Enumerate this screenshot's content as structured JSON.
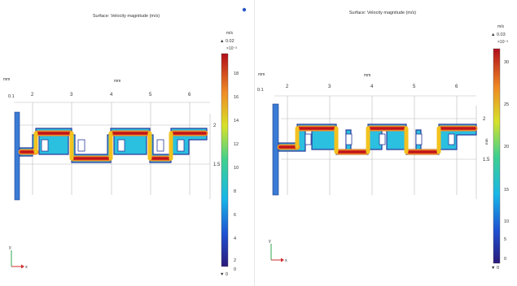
{
  "left": {
    "title": "Surface: Velocity magnitude (m/s)",
    "unit_top": "m/s",
    "max_value": "▲ 0.02",
    "scale_factor": "×10⁻³",
    "min_value": "▼ 0",
    "colorbar_ticks": [
      "18",
      "16",
      "14",
      "12",
      "10",
      "8",
      "6",
      "4",
      "2",
      "0"
    ],
    "axis_unit_x": "mm",
    "axis_unit_y_left": "mm",
    "x_ticks": [
      "2",
      "3",
      "4",
      "5",
      "6"
    ],
    "y_tick_top": "0.1",
    "right_ticks": [
      "2",
      "1.5"
    ],
    "right_unit": "mm",
    "triad_y": "y",
    "triad_x": "x"
  },
  "right": {
    "title": "Surface: Velocity magnitude (m/s)",
    "unit_top": "m/s",
    "max_value": "▲ 0.03",
    "scale_factor": "×10⁻³",
    "min_value": "▼ 0",
    "colorbar_ticks": [
      "30",
      "25",
      "20",
      "15",
      "10",
      "5",
      "0"
    ],
    "axis_unit_x": "mm",
    "axis_unit_y_left": "mm",
    "x_ticks": [
      "2",
      "3",
      "4",
      "5",
      "6"
    ],
    "y_tick_top": "0.1",
    "right_ticks": [
      "2",
      "1.5"
    ],
    "right_unit": "mm",
    "triad_y": "y",
    "triad_x": "x"
  },
  "colors": {
    "inlet": "#3a7bd5",
    "high": "#c0141c",
    "mid": "#f08a24",
    "low": "#2a3b9c",
    "grid": "#9a9a9a"
  },
  "icons": {
    "orientation_triad": "xy-axes-icon",
    "window_indicator": "blue-dot-icon"
  }
}
